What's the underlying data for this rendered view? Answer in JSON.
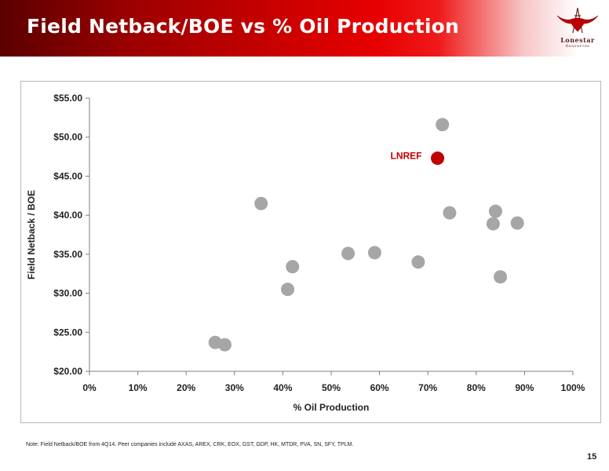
{
  "slide": {
    "title": "Field Netback/BOE vs % Oil Production",
    "note": "Note: Field Netback/BOE from 4Q14. Peer companies include AXAS, AREX, CRK, EOX, GST, GDP, HK, MTDR, PVA, SN, SFY, TPLM.",
    "page_number": "15"
  },
  "logo": {
    "name": "Lonestar",
    "tagline": "Resources",
    "icon": "longhorn-bull-oil-derrick-icon"
  },
  "colors": {
    "header_dark": "#5a0000",
    "header_red": "#e70000",
    "peer_marker": "#a6a6a6",
    "highlight_marker": "#c00000",
    "highlight_label": "#c00000"
  },
  "chart_data": {
    "type": "scatter",
    "title": "",
    "xlabel": "% Oil Production",
    "ylabel": "Field Netback / BOE",
    "xlim": [
      0,
      1
    ],
    "ylim": [
      20,
      55
    ],
    "x_ticks": [
      "0%",
      "10%",
      "20%",
      "30%",
      "40%",
      "50%",
      "60%",
      "70%",
      "80%",
      "90%",
      "100%"
    ],
    "y_ticks": [
      "$20.00",
      "$25.00",
      "$30.00",
      "$35.00",
      "$40.00",
      "$45.00",
      "$50.00",
      "$55.00"
    ],
    "grid": false,
    "legend": "none",
    "series": [
      {
        "points": [
          {
            "x": 0.26,
            "y": 23.7
          },
          {
            "x": 0.28,
            "y": 23.4
          },
          {
            "x": 0.355,
            "y": 41.5
          },
          {
            "x": 0.41,
            "y": 30.5
          },
          {
            "x": 0.42,
            "y": 33.4
          },
          {
            "x": 0.535,
            "y": 35.1
          },
          {
            "x": 0.59,
            "y": 35.2
          },
          {
            "x": 0.68,
            "y": 34.0
          },
          {
            "x": 0.73,
            "y": 51.6
          },
          {
            "x": 0.745,
            "y": 40.3
          },
          {
            "x": 0.835,
            "y": 38.9
          },
          {
            "x": 0.84,
            "y": 40.5
          },
          {
            "x": 0.85,
            "y": 32.1
          },
          {
            "x": 0.885,
            "y": 39.0
          }
        ]
      },
      {
        "name": "LNREF",
        "points": [
          {
            "x": 0.72,
            "y": 47.3
          }
        ]
      }
    ]
  }
}
